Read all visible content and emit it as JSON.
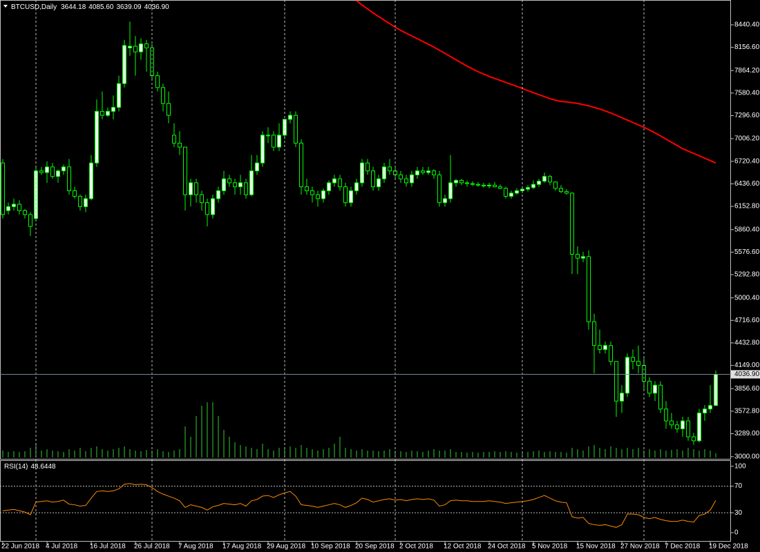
{
  "chart_data": [
    {
      "type": "candlestick",
      "title": "BTCUSD,Daily",
      "header_values": [
        "3644.18",
        "4085.60",
        "3639.09",
        "4036.90"
      ],
      "categories": [
        "22 Jun 2018",
        null,
        null,
        null,
        null,
        null,
        null,
        null,
        "4 Jul 2018",
        null,
        null,
        null,
        null,
        null,
        null,
        null,
        "16 Jul 2018",
        null,
        null,
        null,
        null,
        null,
        null,
        null,
        "26 Jul 2018",
        null,
        null,
        null,
        null,
        null,
        null,
        null,
        "7 Aug 2018",
        null,
        null,
        null,
        null,
        null,
        null,
        null,
        "17 Aug 2018",
        null,
        null,
        null,
        null,
        null,
        null,
        null,
        "29 Aug 2018",
        null,
        null,
        null,
        null,
        null,
        null,
        null,
        "10 Sep 2018",
        null,
        null,
        null,
        null,
        null,
        null,
        null,
        "20 Sep 2018",
        null,
        null,
        null,
        null,
        null,
        null,
        null,
        "2 Oct 2018",
        null,
        null,
        null,
        null,
        null,
        null,
        null,
        "12 Oct 2018",
        null,
        null,
        null,
        null,
        null,
        null,
        null,
        "24 Oct 2018",
        null,
        null,
        null,
        null,
        null,
        null,
        null,
        "5 Nov 2018",
        null,
        null,
        null,
        null,
        null,
        null,
        null,
        "15 Nov 2018",
        null,
        null,
        null,
        null,
        null,
        null,
        null,
        "27 Nov 2018",
        null,
        null,
        null,
        null,
        null,
        null,
        null,
        "7 Dec 2018",
        null,
        null,
        null,
        null,
        null,
        null,
        null,
        "19 Dec 2018",
        null
      ],
      "open": [
        6700,
        6100,
        6150,
        6180,
        6100,
        6050,
        6000,
        6600,
        6580,
        6650,
        6530,
        6600,
        6650,
        6350,
        6280,
        6150,
        6250,
        6700,
        7350,
        7300,
        7350,
        7400,
        7700,
        8150,
        8170,
        8100,
        8200,
        8150,
        7800,
        7650,
        7450,
        7050,
        6950,
        6900,
        6300,
        6450,
        6300,
        6200,
        6050,
        6250,
        6350,
        6500,
        6450,
        6400,
        6450,
        6300,
        6600,
        6700,
        7050,
        7050,
        6900,
        7050,
        7250,
        7300,
        6950,
        6400,
        6350,
        6300,
        6250,
        6350,
        6450,
        6500,
        6400,
        6200,
        6350,
        6450,
        6700,
        6600,
        6400,
        6500,
        6650,
        6600,
        6550,
        6500,
        6450,
        6550,
        6600,
        6580,
        6600,
        6550,
        6200,
        6250,
        6450,
        6480,
        6450,
        6440,
        6430,
        6420,
        6410,
        6420,
        6400,
        6380,
        6280,
        6320,
        6350,
        6370,
        6390,
        6430,
        6470,
        6530,
        6460,
        6380,
        6340,
        6320,
        5550,
        5500,
        5520,
        4700,
        4400,
        4350,
        4400,
        4200,
        3700,
        3800,
        4250,
        4200,
        4150,
        3950,
        3800,
        3900,
        3600,
        3450,
        3400,
        3350,
        3450,
        3250,
        3200,
        3550,
        3600,
        3644.18
      ],
      "high": [
        6750,
        6200,
        6250,
        6230,
        6120,
        6080,
        6650,
        6650,
        6720,
        6700,
        6620,
        6680,
        6750,
        6400,
        6300,
        6300,
        6800,
        7500,
        7600,
        7400,
        7550,
        7800,
        8250,
        8480,
        8300,
        8270,
        8250,
        8200,
        7850,
        7700,
        7600,
        7200,
        7100,
        6900,
        6500,
        6500,
        6350,
        6250,
        6300,
        6400,
        6600,
        6550,
        6500,
        6550,
        6500,
        6800,
        6800,
        7100,
        7150,
        7100,
        7200,
        7250,
        7350,
        7350,
        7000,
        6500,
        6400,
        6350,
        6380,
        6480,
        6550,
        6550,
        6450,
        6400,
        6500,
        6750,
        6750,
        6650,
        6550,
        6700,
        6750,
        6650,
        6600,
        6550,
        6600,
        6650,
        6650,
        6650,
        6620,
        6600,
        6300,
        6800,
        6500,
        6500,
        6480,
        6470,
        6460,
        6450,
        6450,
        6460,
        6430,
        6400,
        6350,
        6380,
        6400,
        6420,
        6480,
        6500,
        6580,
        6550,
        6470,
        6420,
        6370,
        6330,
        5650,
        5580,
        5600,
        4800,
        4600,
        4450,
        4450,
        4200,
        3900,
        4300,
        4350,
        4400,
        4250,
        4000,
        3950,
        3950,
        3700,
        3550,
        3450,
        3500,
        3500,
        3300,
        3600,
        3650,
        3900,
        4085.6
      ],
      "low": [
        6000,
        6050,
        6100,
        6050,
        6000,
        5780,
        5980,
        6550,
        6450,
        6500,
        6450,
        6550,
        6300,
        6250,
        6100,
        6080,
        6230,
        6650,
        7250,
        7280,
        7250,
        7350,
        7650,
        8050,
        7800,
        8000,
        7850,
        7750,
        7600,
        7350,
        7200,
        6900,
        6800,
        6100,
        6150,
        6200,
        6100,
        5900,
        6000,
        6200,
        6300,
        6400,
        6300,
        6300,
        6250,
        6280,
        6550,
        6650,
        6950,
        6850,
        6850,
        7000,
        7200,
        6900,
        6300,
        6300,
        6200,
        6150,
        6200,
        6300,
        6400,
        6350,
        6150,
        6150,
        6300,
        6400,
        6550,
        6350,
        6350,
        6450,
        6550,
        6500,
        6450,
        6400,
        6400,
        6500,
        6550,
        6550,
        6500,
        6150,
        6150,
        6200,
        6400,
        6420,
        6400,
        6410,
        6400,
        6390,
        6380,
        6390,
        6370,
        6250,
        6250,
        6300,
        6320,
        6340,
        6370,
        6400,
        6450,
        6420,
        6350,
        6320,
        6300,
        5300,
        5300,
        5450,
        4600,
        4050,
        4300,
        4300,
        4150,
        3500,
        3550,
        3750,
        4100,
        4050,
        3850,
        3750,
        3700,
        3550,
        3350,
        3350,
        3300,
        3250,
        3200,
        3150,
        3180,
        3450,
        3550,
        3639.09
      ],
      "close": [
        6050,
        6150,
        6180,
        6100,
        6050,
        5900,
        6600,
        6580,
        6650,
        6530,
        6600,
        6650,
        6350,
        6280,
        6150,
        6250,
        6700,
        7350,
        7300,
        7350,
        7400,
        7700,
        8180,
        8170,
        8100,
        8200,
        8150,
        7800,
        7650,
        7450,
        7300,
        6950,
        6900,
        6300,
        6450,
        6300,
        6200,
        6050,
        6250,
        6350,
        6500,
        6450,
        6400,
        6450,
        6300,
        6600,
        6700,
        7050,
        7050,
        6900,
        7050,
        7250,
        7300,
        6950,
        6400,
        6350,
        6300,
        6250,
        6350,
        6450,
        6500,
        6400,
        6200,
        6350,
        6450,
        6700,
        6600,
        6400,
        6500,
        6650,
        6600,
        6550,
        6500,
        6450,
        6550,
        6600,
        6580,
        6600,
        6550,
        6200,
        6250,
        6450,
        6480,
        6450,
        6440,
        6430,
        6420,
        6410,
        6420,
        6400,
        6380,
        6280,
        6320,
        6350,
        6370,
        6390,
        6430,
        6470,
        6530,
        6460,
        6380,
        6340,
        6320,
        5550,
        5500,
        5520,
        4700,
        4400,
        4350,
        4400,
        4200,
        3700,
        3800,
        4250,
        4200,
        4150,
        3950,
        3800,
        3900,
        3600,
        3450,
        3400,
        3350,
        3450,
        3250,
        3200,
        3550,
        3600,
        3644.18,
        4036.9
      ],
      "volume": [
        10,
        8,
        9,
        8,
        9,
        14,
        20,
        10,
        12,
        10,
        9,
        8,
        12,
        10,
        14,
        9,
        14,
        16,
        12,
        10,
        12,
        14,
        16,
        12,
        10,
        9,
        11,
        10,
        12,
        9,
        8,
        10,
        12,
        45,
        30,
        60,
        75,
        80,
        80,
        60,
        40,
        30,
        22,
        18,
        16,
        14,
        12,
        20,
        12,
        10,
        14,
        12,
        16,
        14,
        18,
        14,
        12,
        10,
        12,
        14,
        20,
        30,
        14,
        12,
        10,
        12,
        10,
        10,
        9,
        10,
        12,
        10,
        9,
        8,
        10,
        9,
        8,
        10,
        12,
        10,
        10,
        12,
        8,
        8,
        7,
        8,
        7,
        8,
        8,
        9,
        8,
        9,
        8,
        7,
        8,
        8,
        9,
        10,
        8,
        9,
        8,
        8,
        7,
        14,
        12,
        10,
        16,
        18,
        14,
        12,
        16,
        14,
        12,
        14,
        12,
        14,
        10,
        12,
        10,
        12,
        10,
        11,
        12,
        10,
        14,
        12,
        10,
        12,
        10,
        6
      ],
      "moving_average": [
        null,
        null,
        null,
        null,
        null,
        null,
        null,
        null,
        null,
        null,
        null,
        null,
        null,
        null,
        null,
        null,
        null,
        null,
        null,
        null,
        null,
        null,
        null,
        null,
        null,
        null,
        null,
        null,
        null,
        null,
        null,
        null,
        null,
        null,
        null,
        null,
        null,
        null,
        null,
        null,
        null,
        null,
        null,
        null,
        null,
        null,
        null,
        null,
        null,
        null,
        null,
        null,
        null,
        null,
        null,
        null,
        null,
        null,
        null,
        null,
        null,
        null,
        null,
        null,
        8745,
        8690,
        8640,
        8590,
        8545,
        8500,
        8455,
        8410,
        8370,
        8335,
        8300,
        8265,
        8230,
        8195,
        8160,
        8120,
        8080,
        8040,
        8000,
        7960,
        7920,
        7885,
        7850,
        7820,
        7790,
        7765,
        7740,
        7715,
        7690,
        7665,
        7640,
        7610,
        7585,
        7560,
        7535,
        7510,
        7490,
        7475,
        7470,
        7460,
        7450,
        7435,
        7420,
        7400,
        7380,
        7355,
        7330,
        7300,
        7270,
        7240,
        7210,
        7180,
        7150,
        7115,
        7080,
        7040,
        7000,
        6960,
        6920,
        6880,
        6850,
        6820,
        6790,
        6760,
        6730,
        6700
      ],
      "last_price": {
        "value": 4036.9,
        "label": "4036.90"
      },
      "ylim": [
        2972,
        8753
      ],
      "yticks": [
        {
          "value": 8440.4,
          "label": "8440.40"
        },
        {
          "value": 8156.6,
          "label": "8156.60"
        },
        {
          "value": 7864.2,
          "label": "7864.20"
        },
        {
          "value": 7580.4,
          "label": "7580.40"
        },
        {
          "value": 7296.6,
          "label": "7296.60"
        },
        {
          "value": 7006.2,
          "label": "7006.20"
        },
        {
          "value": 6720.4,
          "label": "6720.40"
        },
        {
          "value": 6436.6,
          "label": "6436.60"
        },
        {
          "value": 6152.8,
          "label": "6152.80"
        },
        {
          "value": 5860.4,
          "label": "5860.40"
        },
        {
          "value": 5576.6,
          "label": "5576.60"
        },
        {
          "value": 5292.8,
          "label": "5292.80"
        },
        {
          "value": 5000.4,
          "label": "5000.40"
        },
        {
          "value": 4716.6,
          "label": "4716.60"
        },
        {
          "value": 4432.8,
          "label": "4432.80"
        },
        {
          "value": 4149,
          "label": "4149.00"
        },
        {
          "value": 3856.6,
          "label": "3856.60"
        },
        {
          "value": 3572.8,
          "label": "3572.80"
        },
        {
          "value": 3289,
          "label": "3289.00"
        },
        {
          "value": 3000,
          "label": "3000.00"
        }
      ],
      "candle_color": "#00ff00",
      "bull_fill": "#e6ffe6",
      "bear_fill": "#000000",
      "volume_color": "#32cd32",
      "ma_color": "#ff0000",
      "last_price_color": "#778899"
    },
    {
      "type": "line",
      "title": "RSI(14)",
      "values": [
        33,
        34,
        35,
        33,
        31,
        27,
        46,
        47,
        48,
        46,
        47,
        49,
        43,
        42,
        40,
        41,
        52,
        62,
        63,
        62,
        63,
        66,
        73,
        74,
        72,
        73,
        72,
        68,
        62,
        58,
        55,
        52,
        48,
        38,
        42,
        40,
        38,
        34,
        39,
        41,
        44,
        43,
        42,
        44,
        40,
        48,
        50,
        55,
        56,
        53,
        57,
        60,
        62,
        55,
        42,
        41,
        40,
        38,
        40,
        42,
        44,
        42,
        38,
        41,
        45,
        52,
        50,
        46,
        48,
        50,
        51,
        49,
        50,
        48,
        50,
        51,
        50,
        51,
        49,
        40,
        42,
        48,
        49,
        48,
        48,
        47,
        47,
        47,
        48,
        47,
        46,
        44,
        45,
        46,
        47,
        48,
        50,
        53,
        56,
        52,
        48,
        46,
        45,
        24,
        22,
        23,
        14,
        12,
        11,
        12,
        10,
        8,
        12,
        28,
        28,
        27,
        23,
        21,
        23,
        20,
        18,
        17,
        17,
        19,
        17,
        16,
        26,
        28,
        34,
        48.6448
      ],
      "color": "#ff8c00",
      "ylim": [
        -13.5,
        108
      ],
      "yticks": [
        100,
        70,
        30,
        0
      ],
      "levels": [
        70,
        30
      ]
    }
  ]
}
